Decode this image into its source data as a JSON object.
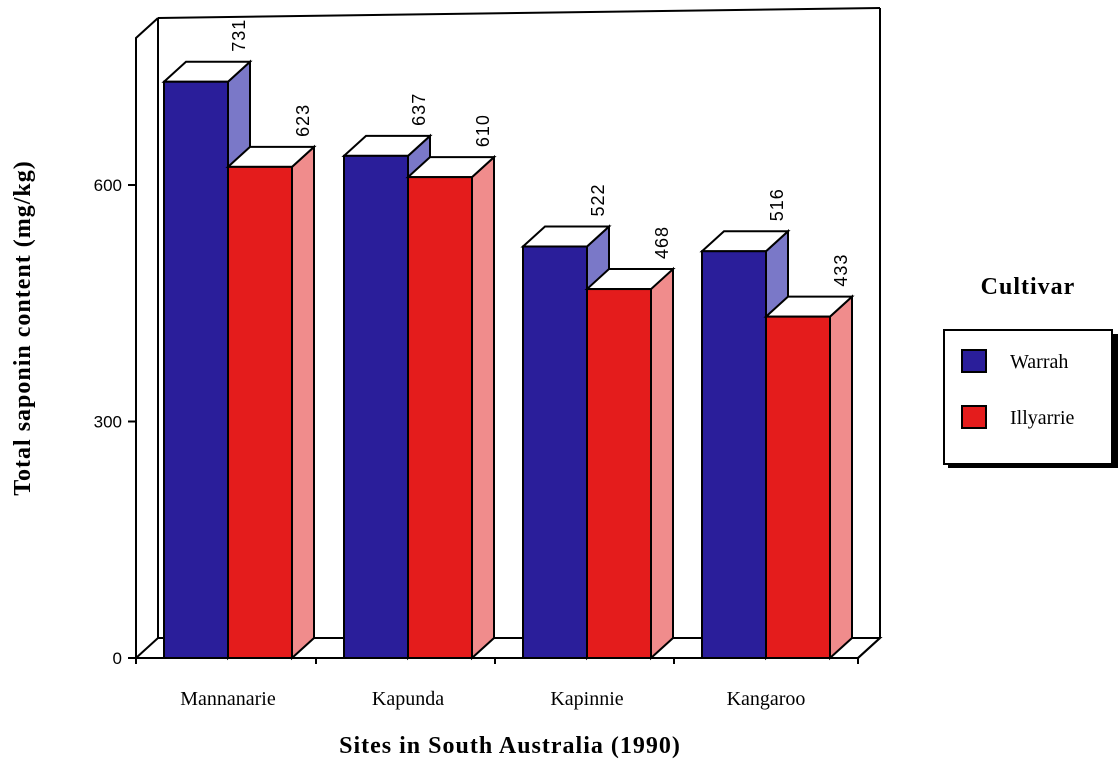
{
  "chart_data": {
    "type": "bar",
    "categories": [
      "Mannanarie",
      "Kapunda",
      "Kapinnie",
      "Kangaroo"
    ],
    "series": [
      {
        "name": "Warrah",
        "values": [
          731,
          637,
          522,
          516
        ],
        "color": "#2a1e9a",
        "side_color": "#7a78c8"
      },
      {
        "name": "Illyarrie",
        "values": [
          623,
          610,
          468,
          433
        ],
        "color": "#e41c1c",
        "side_color": "#f08c8c"
      }
    ],
    "data_labels": [
      [
        "731",
        "637",
        "522",
        "516"
      ],
      [
        "623",
        "610",
        "468",
        "433"
      ]
    ],
    "xlabel": "Sites in South Australia (1990)",
    "ylabel": "Total saponin content (mg/kg)",
    "yticks": [
      0,
      300,
      600
    ],
    "ytick_labels": [
      "0",
      "300",
      "600"
    ],
    "ylim": [
      0,
      800
    ],
    "legend_title": "Cultivar",
    "legend_position": "right",
    "chart_style": "3d",
    "grid": false
  }
}
